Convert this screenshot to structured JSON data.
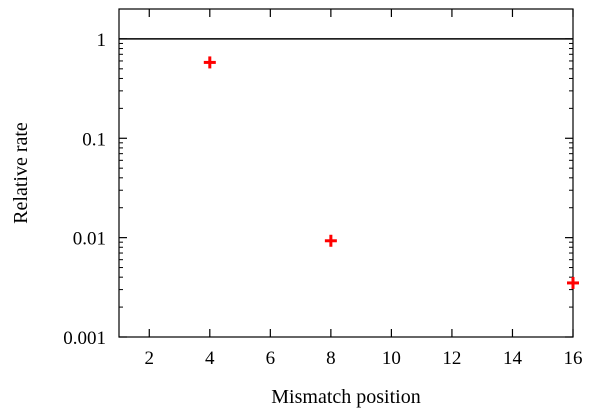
{
  "chart_data": {
    "type": "scatter",
    "xlabel": "Mismatch position",
    "ylabel": "Relative rate",
    "xlim": [
      1,
      16
    ],
    "ylim": [
      0.001,
      2
    ],
    "yscale": "log",
    "grid": false,
    "x_ticks": [
      2,
      4,
      6,
      8,
      10,
      12,
      14,
      16
    ],
    "x_tick_labels": [
      "2",
      "4",
      "6",
      "8",
      "10",
      "12",
      "14",
      "16"
    ],
    "y_ticks": [
      0.001,
      0.01,
      0.1,
      1
    ],
    "y_tick_labels": [
      "0.001",
      "0.01",
      "0.1",
      "1"
    ],
    "reference_line": {
      "y": 1,
      "color": "#000000"
    },
    "series": [
      {
        "marker": "plus",
        "color": "#ff0000",
        "points": [
          {
            "x": 4,
            "y": 0.58
          },
          {
            "x": 8,
            "y": 0.0093
          },
          {
            "x": 16,
            "y": 0.0035
          }
        ]
      }
    ]
  }
}
